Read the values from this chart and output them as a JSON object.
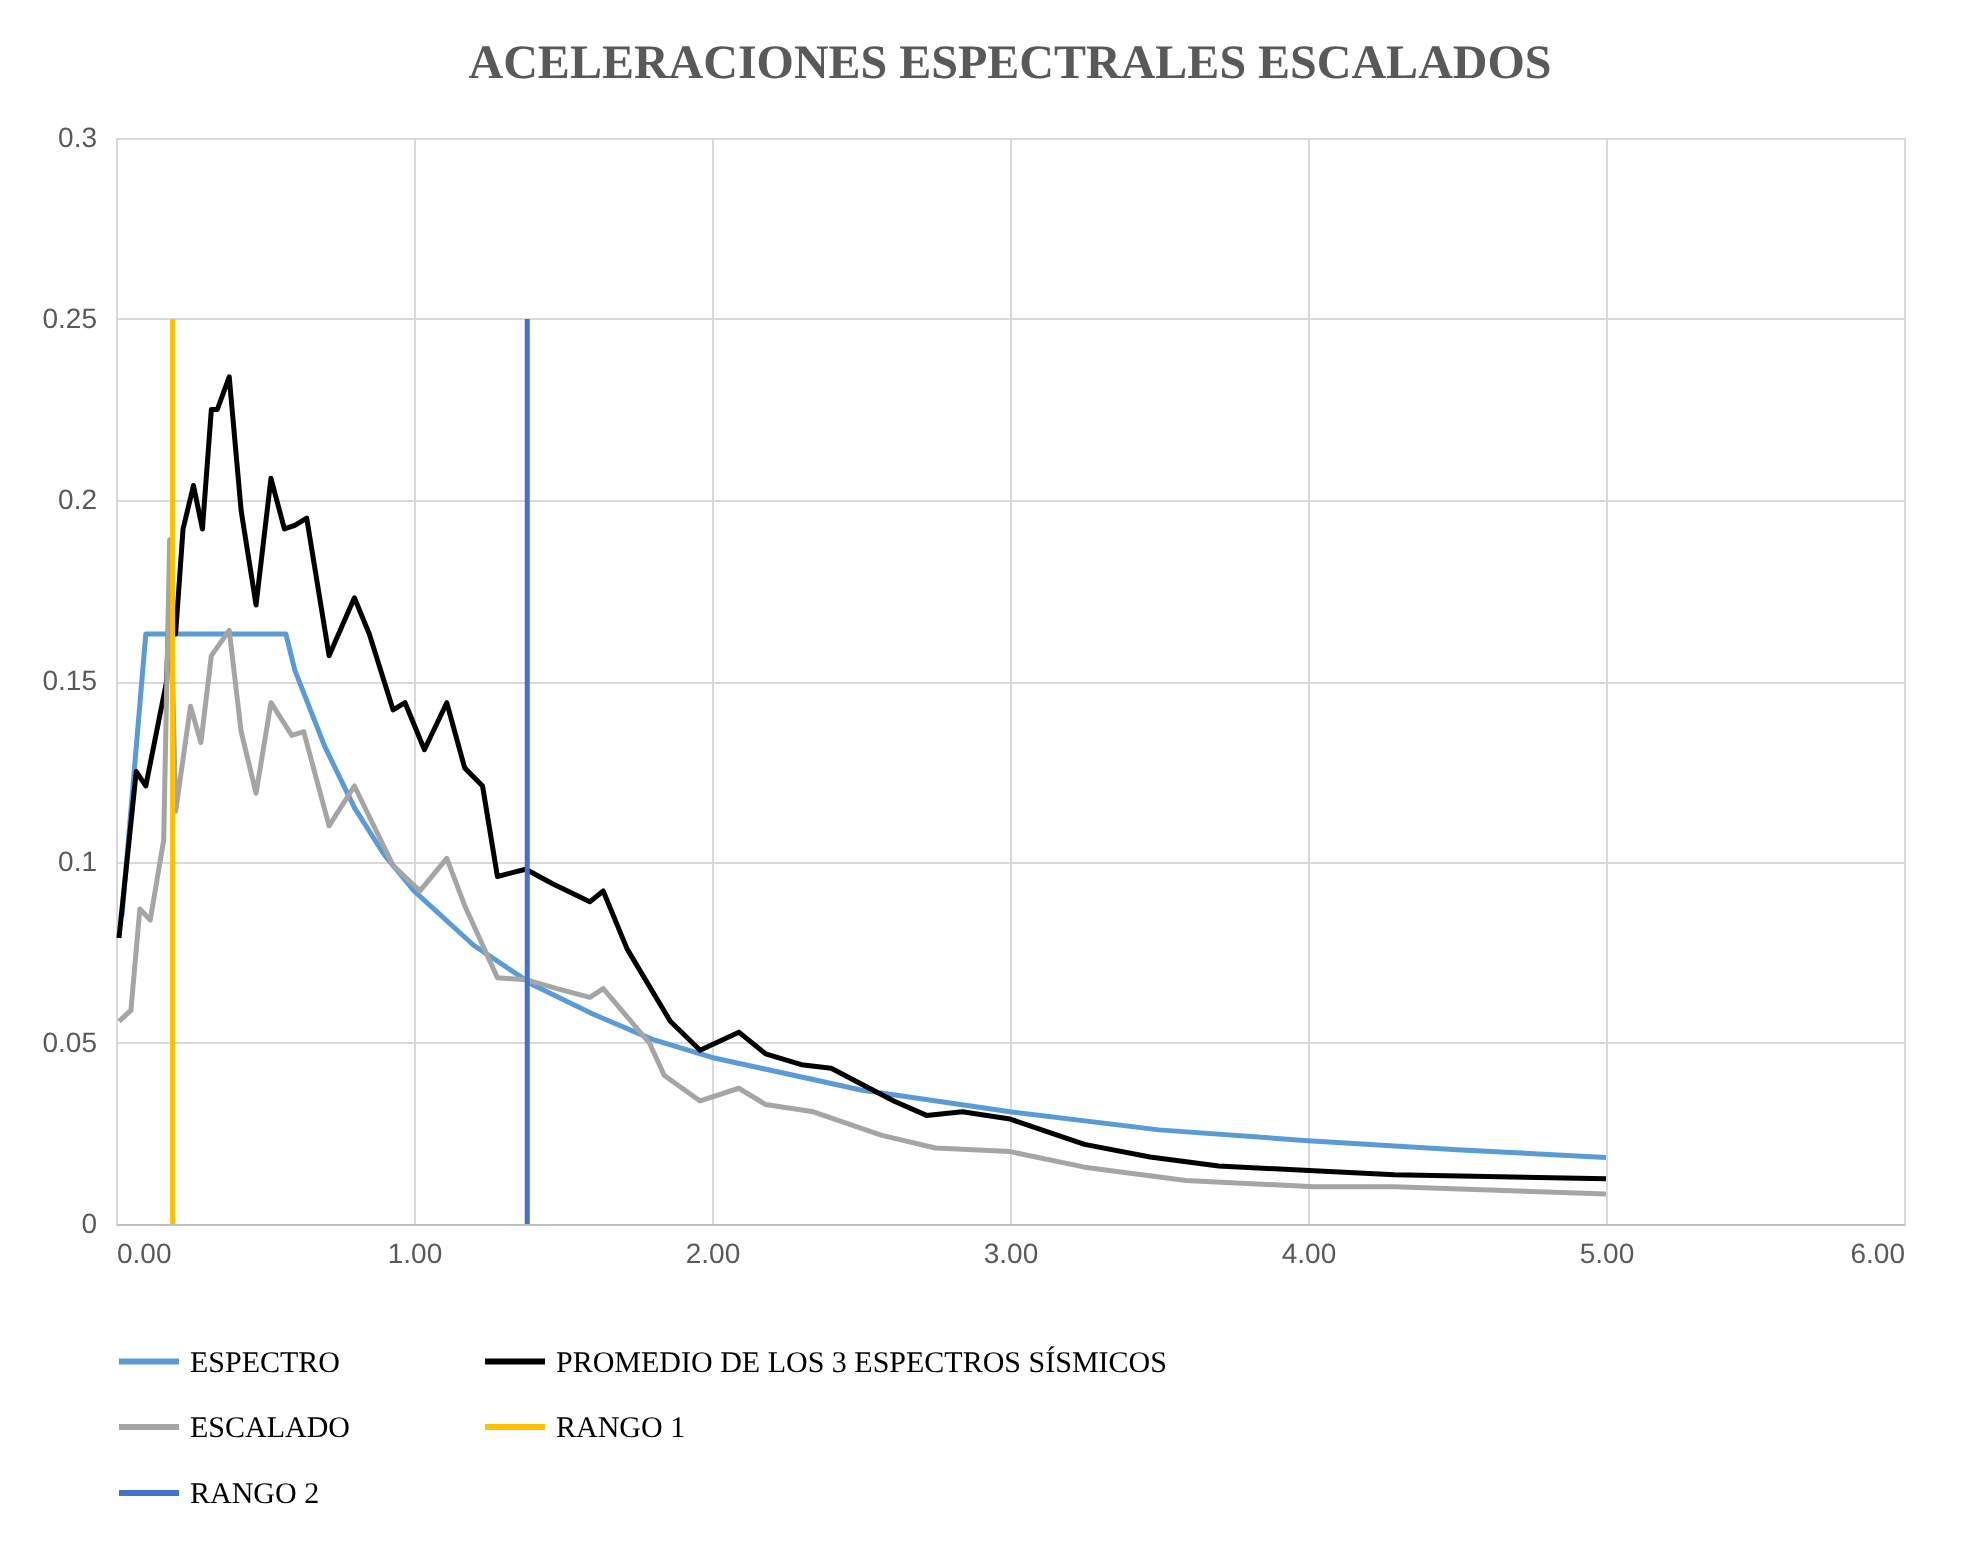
{
  "chart_data": {
    "type": "line",
    "title": "ACELERACIONES ESPECTRALES ESCALADOS",
    "xlim": [
      0,
      6
    ],
    "xticks": [
      {
        "value": 0,
        "label": "0.00"
      },
      {
        "value": 1,
        "label": "1.00"
      },
      {
        "value": 2,
        "label": "2.00"
      },
      {
        "value": 3,
        "label": "3.00"
      },
      {
        "value": 4,
        "label": "4.00"
      },
      {
        "value": 5,
        "label": "5.00"
      },
      {
        "value": 6,
        "label": "6.00"
      }
    ],
    "ylim": [
      0,
      0.3
    ],
    "yticks": [
      0,
      0.05,
      0.1,
      0.15,
      0.2,
      0.25,
      0.3
    ],
    "grid": true,
    "legend": "bottom",
    "line_style": "solid",
    "series": [
      {
        "name": "ESPECTRO",
        "color": "#5b9bd5",
        "x": [
          0.02,
          0.1,
          0.57,
          0.6,
          0.7,
          0.8,
          0.9,
          1.0,
          1.2,
          1.4,
          1.6,
          1.8,
          2.0,
          2.5,
          3.0,
          3.5,
          4.0,
          4.5,
          5.0
        ],
        "values": [
          0.085,
          0.163,
          0.163,
          0.153,
          0.132,
          0.115,
          0.102,
          0.092,
          0.077,
          0.066,
          0.058,
          0.051,
          0.046,
          0.037,
          0.031,
          0.026,
          0.023,
          0.0205,
          0.0184
        ]
      },
      {
        "name": "PROMEDIO DE LOS 3 ESPECTROS SÍSMICOS",
        "color": "#000000",
        "x": [
          0.01,
          0.068,
          0.1,
          0.17,
          0.18,
          0.2,
          0.225,
          0.26,
          0.29,
          0.32,
          0.34,
          0.38,
          0.42,
          0.47,
          0.52,
          0.565,
          0.6,
          0.64,
          0.715,
          0.8,
          0.85,
          0.93,
          0.97,
          1.035,
          1.11,
          1.17,
          1.23,
          1.28,
          1.375,
          1.465,
          1.59,
          1.635,
          1.715,
          1.86,
          1.96,
          2.09,
          2.18,
          2.3,
          2.4,
          2.61,
          2.72,
          2.84,
          3.0,
          3.25,
          3.47,
          3.7,
          4.02,
          4.29,
          5.0
        ],
        "values": [
          0.079,
          0.125,
          0.121,
          0.15,
          0.175,
          0.163,
          0.192,
          0.204,
          0.192,
          0.225,
          0.225,
          0.234,
          0.197,
          0.171,
          0.206,
          0.192,
          0.193,
          0.195,
          0.157,
          0.173,
          0.163,
          0.142,
          0.144,
          0.131,
          0.144,
          0.126,
          0.121,
          0.096,
          0.098,
          0.094,
          0.089,
          0.092,
          0.076,
          0.056,
          0.048,
          0.053,
          0.047,
          0.044,
          0.043,
          0.034,
          0.03,
          0.031,
          0.029,
          0.022,
          0.0185,
          0.016,
          0.0147,
          0.0136,
          0.0125
        ]
      },
      {
        "name": "ESCALADO",
        "color": "#a5a5a5",
        "x": [
          0.01,
          0.05,
          0.08,
          0.115,
          0.16,
          0.18,
          0.2,
          0.25,
          0.285,
          0.32,
          0.38,
          0.42,
          0.47,
          0.52,
          0.59,
          0.63,
          0.715,
          0.8,
          0.93,
          1.02,
          1.11,
          1.17,
          1.28,
          1.375,
          1.48,
          1.59,
          1.635,
          1.79,
          1.84,
          1.96,
          2.09,
          2.18,
          2.34,
          2.57,
          2.75,
          3.0,
          3.25,
          3.59,
          4.02,
          4.29,
          5.0
        ],
        "values": [
          0.056,
          0.059,
          0.087,
          0.084,
          0.106,
          0.189,
          0.114,
          0.143,
          0.133,
          0.157,
          0.164,
          0.136,
          0.119,
          0.144,
          0.135,
          0.136,
          0.11,
          0.121,
          0.099,
          0.092,
          0.101,
          0.088,
          0.068,
          0.0675,
          0.065,
          0.0626,
          0.065,
          0.05,
          0.041,
          0.034,
          0.0375,
          0.033,
          0.031,
          0.0245,
          0.021,
          0.02,
          0.0157,
          0.012,
          0.0103,
          0.0103,
          0.0083
        ]
      },
      {
        "name": "RANGO 1",
        "color": "#ffc000",
        "x": [
          0.19,
          0.19
        ],
        "values": [
          0,
          0.25
        ]
      },
      {
        "name": "RANGO 2",
        "color": "#4472c4",
        "x": [
          1.38,
          1.38
        ],
        "values": [
          0,
          0.25
        ]
      }
    ]
  }
}
